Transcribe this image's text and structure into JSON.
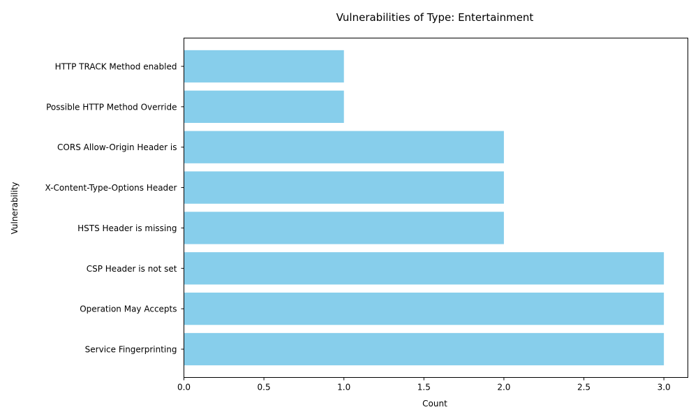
{
  "chart_data": {
    "type": "bar",
    "orientation": "horizontal",
    "title": "Vulnerabilities of Type: Entertainment",
    "xlabel": "Count",
    "ylabel": "Vulnerability",
    "categories": [
      "Service Fingerprinting",
      "Operation May Accepts",
      "CSP Header is not set",
      "HSTS Header is missing",
      "X-Content-Type-Options Header",
      "CORS Allow-Origin Header is",
      "Possible HTTP Method Override",
      "HTTP TRACK Method enabled"
    ],
    "values": [
      3,
      3,
      3,
      2,
      2,
      2,
      1,
      1
    ],
    "xlim": [
      0,
      3.15
    ],
    "xticks": [
      0.0,
      0.5,
      1.0,
      1.5,
      2.0,
      2.5,
      3.0
    ],
    "xtick_labels": [
      "0.0",
      "0.5",
      "1.0",
      "1.5",
      "2.0",
      "2.5",
      "3.0"
    ],
    "bar_color": "#87CEEB",
    "grid": false,
    "legend": "none"
  }
}
